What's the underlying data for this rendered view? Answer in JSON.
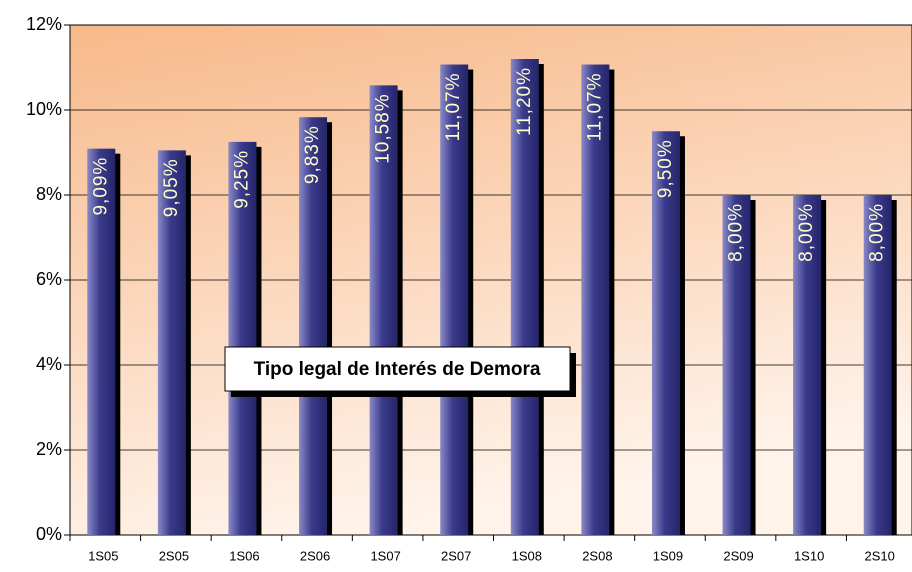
{
  "chart_data": {
    "type": "bar",
    "title": "Tipo legal de Interés de Demora",
    "categories": [
      "1S05",
      "2S05",
      "1S06",
      "2S06",
      "1S07",
      "2S07",
      "1S08",
      "2S08",
      "1S09",
      "2S09",
      "1S10",
      "2S10"
    ],
    "values": [
      9.09,
      9.05,
      9.25,
      9.83,
      10.58,
      11.07,
      11.2,
      11.07,
      9.5,
      8.0,
      8.0,
      8.0
    ],
    "value_labels": [
      "9,09%",
      "9,05%",
      "9,25%",
      "9,83%",
      "10,58%",
      "11,07%",
      "11,20%",
      "11,07%",
      "9,50%",
      "8,00%",
      "8,00%",
      "8,00%"
    ],
    "color": "#3a3a8c",
    "ylim": [
      0,
      12
    ],
    "yticks": [
      {
        "value": 0,
        "label": "0%"
      },
      {
        "value": 2,
        "label": "2%"
      },
      {
        "value": 4,
        "label": "4%"
      },
      {
        "value": 6,
        "label": "6%"
      },
      {
        "value": 8,
        "label": "8%"
      },
      {
        "value": 10,
        "label": "10%"
      },
      {
        "value": 12,
        "label": "12%"
      }
    ],
    "grid": true
  }
}
